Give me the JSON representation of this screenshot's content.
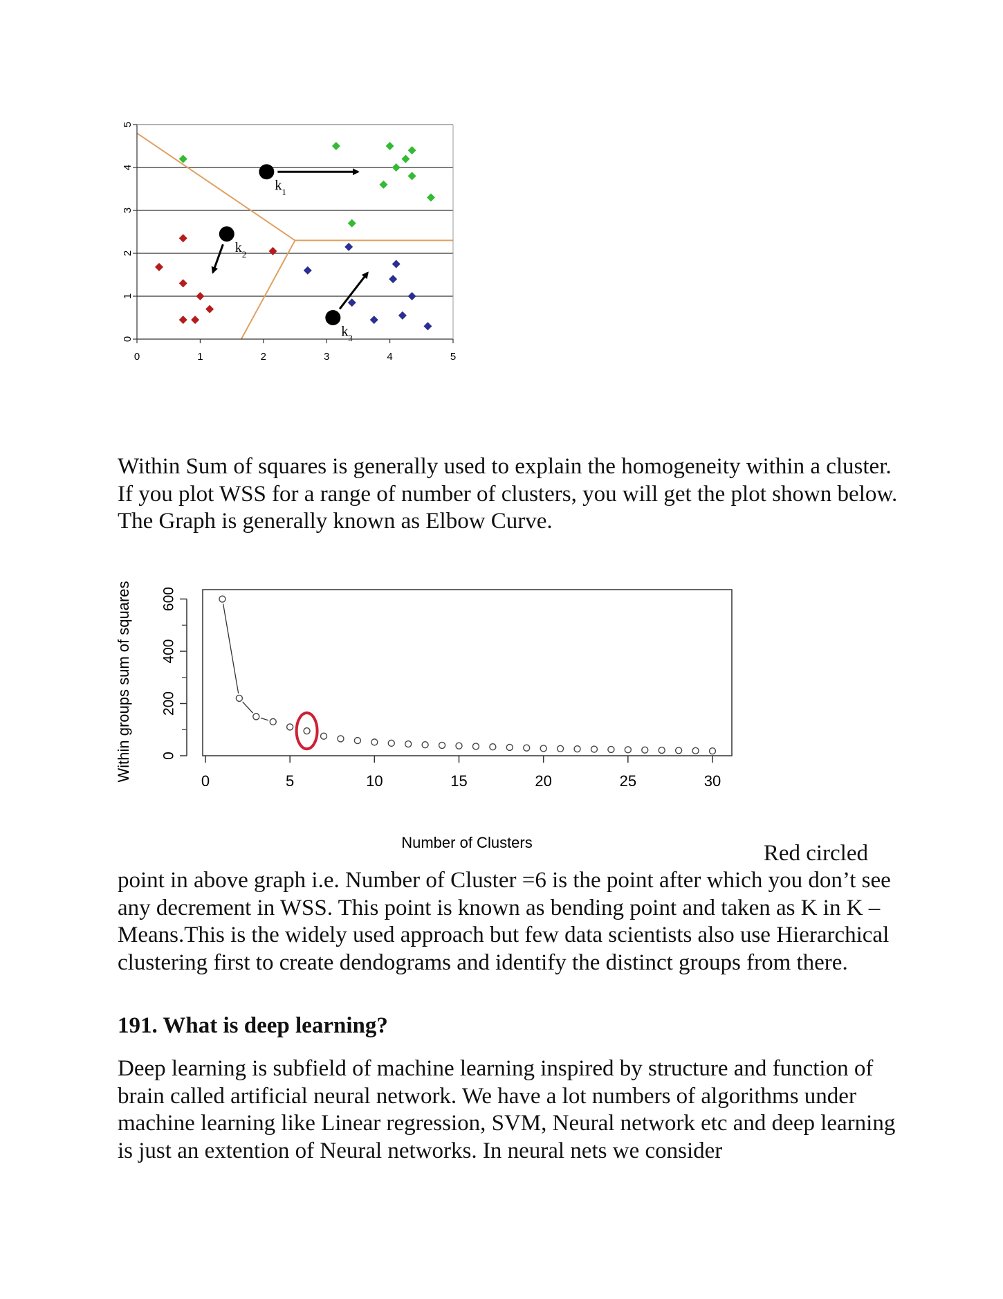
{
  "chart_data": [
    {
      "type": "scatter",
      "title": "",
      "xlabel": "",
      "ylabel": "",
      "xlim": [
        0,
        5
      ],
      "ylim": [
        0,
        5
      ],
      "x_ticks": [
        "0",
        "1",
        "2",
        "3",
        "4",
        "5"
      ],
      "y_ticks": [
        "0",
        "1",
        "2",
        "3",
        "4",
        "5"
      ],
      "grid": "horizontal",
      "colors": {
        "cluster_green": "#33bb33",
        "cluster_red": "#b51c1c",
        "cluster_blue": "#2b2f92",
        "boundary": "#e0a060",
        "centroid": "#000000"
      },
      "series": [
        {
          "color": "green",
          "points": [
            [
              0.73,
              4.2
            ],
            [
              3.15,
              4.5
            ],
            [
              3.4,
              2.7
            ],
            [
              3.9,
              3.6
            ],
            [
              4.0,
              4.5
            ],
            [
              4.1,
              4.0
            ],
            [
              4.25,
              4.2
            ],
            [
              4.35,
              4.4
            ],
            [
              4.35,
              3.8
            ],
            [
              4.65,
              3.3
            ]
          ]
        },
        {
          "color": "red",
          "points": [
            [
              0.35,
              1.68
            ],
            [
              0.73,
              2.35
            ],
            [
              0.73,
              1.3
            ],
            [
              0.73,
              0.45
            ],
            [
              0.92,
              0.45
            ],
            [
              1.0,
              1.0
            ],
            [
              1.15,
              0.7
            ],
            [
              2.15,
              2.05
            ]
          ]
        },
        {
          "color": "blue",
          "points": [
            [
              2.7,
              1.6
            ],
            [
              3.35,
              2.15
            ],
            [
              3.4,
              0.85
            ],
            [
              3.75,
              0.45
            ],
            [
              4.05,
              1.4
            ],
            [
              4.1,
              1.75
            ],
            [
              4.35,
              1.0
            ],
            [
              4.2,
              0.55
            ],
            [
              4.6,
              0.3
            ]
          ]
        }
      ],
      "centroids": [
        {
          "label": "k",
          "subscript": "1",
          "x": 2.05,
          "y": 3.9,
          "arrow_to": [
            3.5,
            3.9
          ]
        },
        {
          "label": "k",
          "subscript": "2",
          "x": 1.42,
          "y": 2.45,
          "arrow_to": [
            1.2,
            1.55
          ]
        },
        {
          "label": "k",
          "subscript": "3",
          "x": 3.1,
          "y": 0.5,
          "arrow_to": [
            3.65,
            1.55
          ]
        }
      ]
    },
    {
      "type": "line",
      "title": "",
      "xlabel": "Number of Clusters",
      "ylabel": "Within groups sum of squares",
      "xlim": [
        0,
        31
      ],
      "ylim": [
        0,
        620
      ],
      "x_ticks": [
        "0",
        "5",
        "10",
        "15",
        "20",
        "25",
        "30"
      ],
      "y_ticks": [
        "0",
        "200",
        "400",
        "600"
      ],
      "highlight": {
        "x": 6,
        "color": "#cc2233"
      },
      "x": [
        1,
        2,
        3,
        4,
        5,
        6,
        7,
        8,
        9,
        10,
        11,
        12,
        13,
        14,
        15,
        16,
        17,
        18,
        19,
        20,
        21,
        22,
        23,
        24,
        25,
        26,
        27,
        28,
        29,
        30
      ],
      "values": [
        600,
        220,
        150,
        130,
        110,
        95,
        75,
        65,
        58,
        52,
        48,
        45,
        42,
        40,
        38,
        36,
        34,
        32,
        30,
        28,
        27,
        26,
        25,
        24,
        23,
        22,
        21,
        20,
        19,
        18
      ]
    }
  ],
  "text": {
    "p1": "Within Sum of squares is generally used to explain the homogeneity within a cluster. If you plot WSS for a range of number of clusters, you will get the plot shown below. The Graph is generally known as Elbow Curve.",
    "p2_lead": "Red circled",
    "p2": "point in above graph i.e. Number of Cluster =6 is the point after which you don’t see any decrement in WSS. This point is known as bending point and taken as K in K – Means.This is the widely used approach but few data scientists also use Hierarchical clustering first to create dendograms and identify the distinct groups from there.",
    "q191": "191. What is deep learning?",
    "p3": "Deep learning is subfield of machine learning inspired by structure and function of brain called artificial neural network. We have a lot numbers of algorithms under machine learning like Linear regression, SVM, Neural network etc and deep learning is just an extention of Neural networks. In neural nets we consider"
  }
}
